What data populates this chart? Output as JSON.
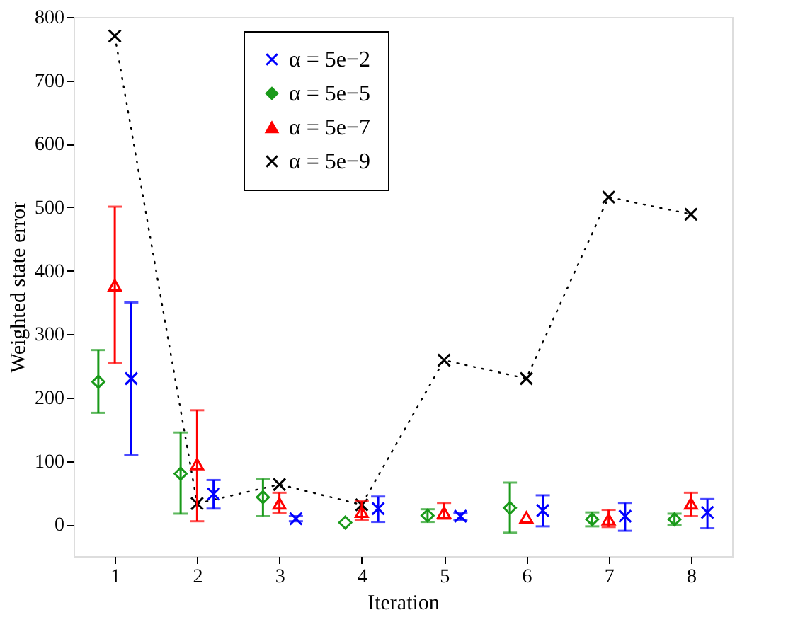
{
  "chart_data": {
    "type": "scatter",
    "xlabel": "Iteration",
    "ylabel": "Weighted state error",
    "xlim": [
      0.5,
      8.5
    ],
    "xticks": [
      1,
      2,
      3,
      4,
      5,
      6,
      7,
      8
    ],
    "ylim": [
      -50,
      800
    ],
    "yticks": [
      0,
      100,
      200,
      300,
      400,
      500,
      600,
      700,
      800
    ],
    "grid": false,
    "legend": "top",
    "series": [
      {
        "name": "α = 5e−2",
        "type": "scatter",
        "marker": "cross",
        "color": "#0000ff",
        "x": [
          1.2,
          2.2,
          3.2,
          4.2,
          5.2,
          6.2,
          7.2,
          8.2
        ],
        "values": [
          230,
          48,
          9,
          25,
          13,
          22,
          13,
          19
        ],
        "errors": [
          [
            110,
            350
          ],
          [
            25,
            70
          ],
          [
            5,
            13
          ],
          [
            4,
            44
          ],
          [
            7,
            18
          ],
          [
            -3,
            46
          ],
          [
            -10,
            34
          ],
          [
            -6,
            40
          ]
        ]
      },
      {
        "name": "α = 5e−5",
        "type": "scatter",
        "marker": "diamond",
        "color": "#1a9a1a",
        "x": [
          0.8,
          1.8,
          2.8,
          3.8,
          4.8,
          5.8,
          6.8,
          7.8
        ],
        "values": [
          225,
          80,
          43,
          3,
          14,
          26,
          8,
          8
        ],
        "errors": [
          [
            176,
            275
          ],
          [
            17,
            145
          ],
          [
            13,
            72
          ],
          null,
          [
            4,
            24
          ],
          [
            -13,
            66
          ],
          [
            -3,
            19
          ],
          [
            -1,
            17
          ]
        ]
      },
      {
        "name": "α = 5e−7",
        "type": "scatter",
        "marker": "triangle",
        "color": "#ff0000",
        "x": [
          1,
          2,
          3,
          4,
          5,
          6,
          7,
          8
        ],
        "values": [
          377,
          95,
          33,
          20,
          19,
          11,
          8,
          33
        ],
        "errors": [
          [
            254,
            501
          ],
          [
            5,
            180
          ],
          [
            18,
            50
          ],
          [
            7,
            37
          ],
          [
            9,
            34
          ],
          null,
          [
            -4,
            23
          ],
          [
            13,
            50
          ]
        ]
      },
      {
        "name": "α = 5e−9",
        "type": "line",
        "marker": "cross",
        "line_style": "dotted",
        "color": "#000000",
        "x": [
          1,
          2,
          3,
          4,
          5,
          6,
          7,
          8
        ],
        "values": [
          770,
          33,
          63,
          31,
          259,
          230,
          516,
          489
        ]
      }
    ]
  }
}
